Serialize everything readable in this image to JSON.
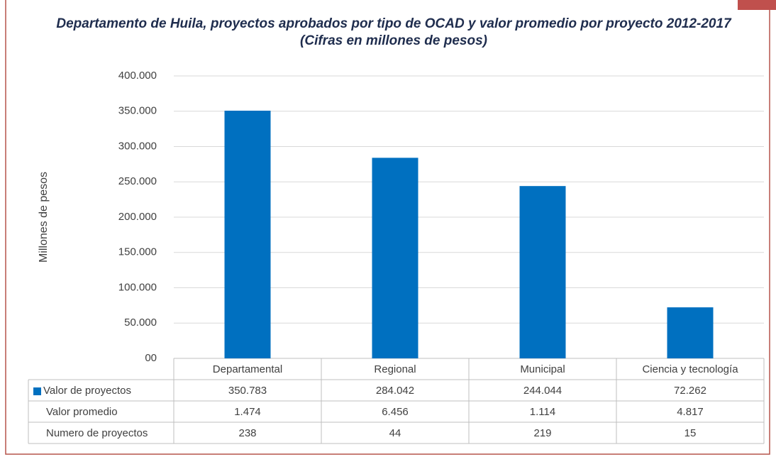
{
  "chart_data": {
    "type": "bar",
    "title": "Departamento de Huila, proyectos aprobados por tipo de OCAD y valor promedio por proyecto 2012-2017 (Cifras en millones de pesos)",
    "y_label": "Millones de pesos",
    "categories": [
      "Departamental",
      "Regional",
      "Municipal",
      "Ciencia y tecnología"
    ],
    "series": [
      {
        "name": "Valor de proyectos",
        "color": "#0070c0",
        "values": [
          350783,
          284042,
          244044,
          72262
        ],
        "value_labels": [
          "350.783",
          "284.042",
          "244.044",
          "72.262"
        ]
      },
      {
        "name": "Valor promedio",
        "values": [
          1474,
          6456,
          1114,
          4817
        ],
        "value_labels": [
          "1.474",
          "6.456",
          "1.114",
          "4.817"
        ]
      },
      {
        "name": "Numero de proyectos",
        "values": [
          238,
          44,
          219,
          15
        ]
      }
    ],
    "ylim": [
      0,
      400000
    ],
    "yticks": [
      {
        "value": 0,
        "label": "00"
      },
      {
        "value": 50000,
        "label": "50.000"
      },
      {
        "value": 100000,
        "label": "100.000"
      },
      {
        "value": 150000,
        "label": "150.000"
      },
      {
        "value": 200000,
        "label": "200.000"
      },
      {
        "value": 250000,
        "label": "250.000"
      },
      {
        "value": 300000,
        "label": "300.000"
      },
      {
        "value": 350000,
        "label": "350.000"
      },
      {
        "value": 400000,
        "label": "400.000"
      }
    ],
    "grid": true
  }
}
